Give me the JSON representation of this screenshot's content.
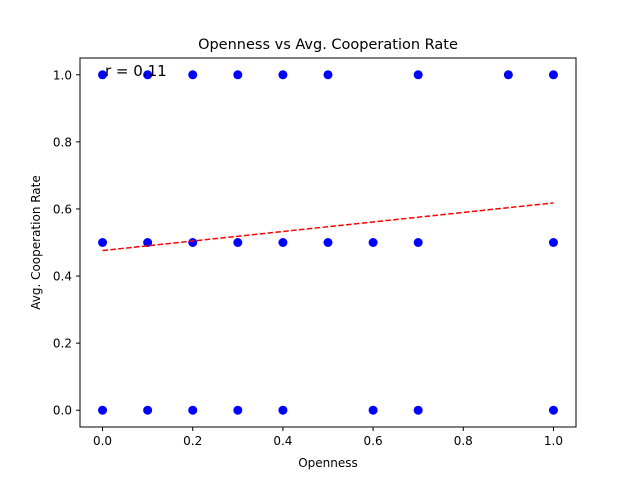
{
  "chart_data": {
    "type": "scatter",
    "title": "Openness vs Avg. Cooperation Rate",
    "xlabel": "Openness",
    "ylabel": "Avg. Cooperation Rate",
    "annotation": "r = 0.11",
    "xlim": [
      -0.05,
      1.05
    ],
    "ylim": [
      -0.05,
      1.05
    ],
    "xticks": [
      0.0,
      0.2,
      0.4,
      0.6,
      0.8,
      1.0
    ],
    "xtick_labels": [
      "0.0",
      "0.2",
      "0.4",
      "0.6",
      "0.8",
      "1.0"
    ],
    "yticks": [
      0.0,
      0.2,
      0.4,
      0.6,
      0.8,
      1.0
    ],
    "ytick_labels": [
      "0.0",
      "0.2",
      "0.4",
      "0.6",
      "0.8",
      "1.0"
    ],
    "grid": false,
    "series": [
      {
        "kind": "scatter",
        "color": "#0000ff",
        "points": [
          [
            0.0,
            1.0
          ],
          [
            0.1,
            1.0
          ],
          [
            0.2,
            1.0
          ],
          [
            0.3,
            1.0
          ],
          [
            0.4,
            1.0
          ],
          [
            0.5,
            1.0
          ],
          [
            0.7,
            1.0
          ],
          [
            0.9,
            1.0
          ],
          [
            1.0,
            1.0
          ],
          [
            0.0,
            0.5
          ],
          [
            0.1,
            0.5
          ],
          [
            0.2,
            0.5
          ],
          [
            0.3,
            0.5
          ],
          [
            0.4,
            0.5
          ],
          [
            0.5,
            0.5
          ],
          [
            0.6,
            0.5
          ],
          [
            0.7,
            0.5
          ],
          [
            1.0,
            0.5
          ],
          [
            0.0,
            0.0
          ],
          [
            0.1,
            0.0
          ],
          [
            0.2,
            0.0
          ],
          [
            0.3,
            0.0
          ],
          [
            0.4,
            0.0
          ],
          [
            0.6,
            0.0
          ],
          [
            0.7,
            0.0
          ],
          [
            1.0,
            0.0
          ]
        ]
      },
      {
        "kind": "line",
        "style": "dashed",
        "color": "#ff0000",
        "points": [
          [
            0.0,
            0.476
          ],
          [
            1.0,
            0.618
          ]
        ]
      }
    ]
  }
}
